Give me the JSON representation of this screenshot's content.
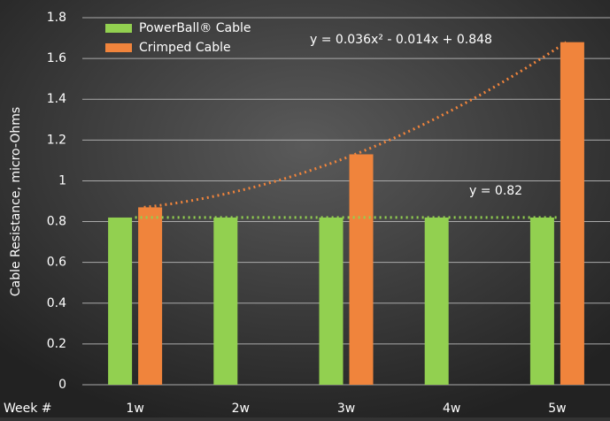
{
  "chart_data": {
    "type": "bar",
    "y_label": "Cable Resistance, micro-Ohms",
    "x_label": "Week #",
    "categories": [
      "1w",
      "2w",
      "3w",
      "4w",
      "5w"
    ],
    "series": [
      {
        "name": "PowerBall® Cable",
        "color": "#92d050",
        "values": [
          0.82,
          0.82,
          0.82,
          0.82,
          0.82
        ],
        "trendline": "linear",
        "trendline_label": "y = 0.82"
      },
      {
        "name": "Crimped Cable",
        "color": "#f0843c",
        "values": [
          0.87,
          null,
          1.13,
          null,
          1.68
        ],
        "trendline": "polynomial",
        "trendline_label": "y = 0.036x² - 0.014x + 0.848"
      }
    ],
    "ylim": [
      0,
      1.8
    ],
    "yticks": [
      0,
      0.2,
      0.4,
      0.6,
      0.8,
      1,
      1.2,
      1.4,
      1.6,
      1.8
    ],
    "grid": true,
    "legend": "top-left"
  }
}
